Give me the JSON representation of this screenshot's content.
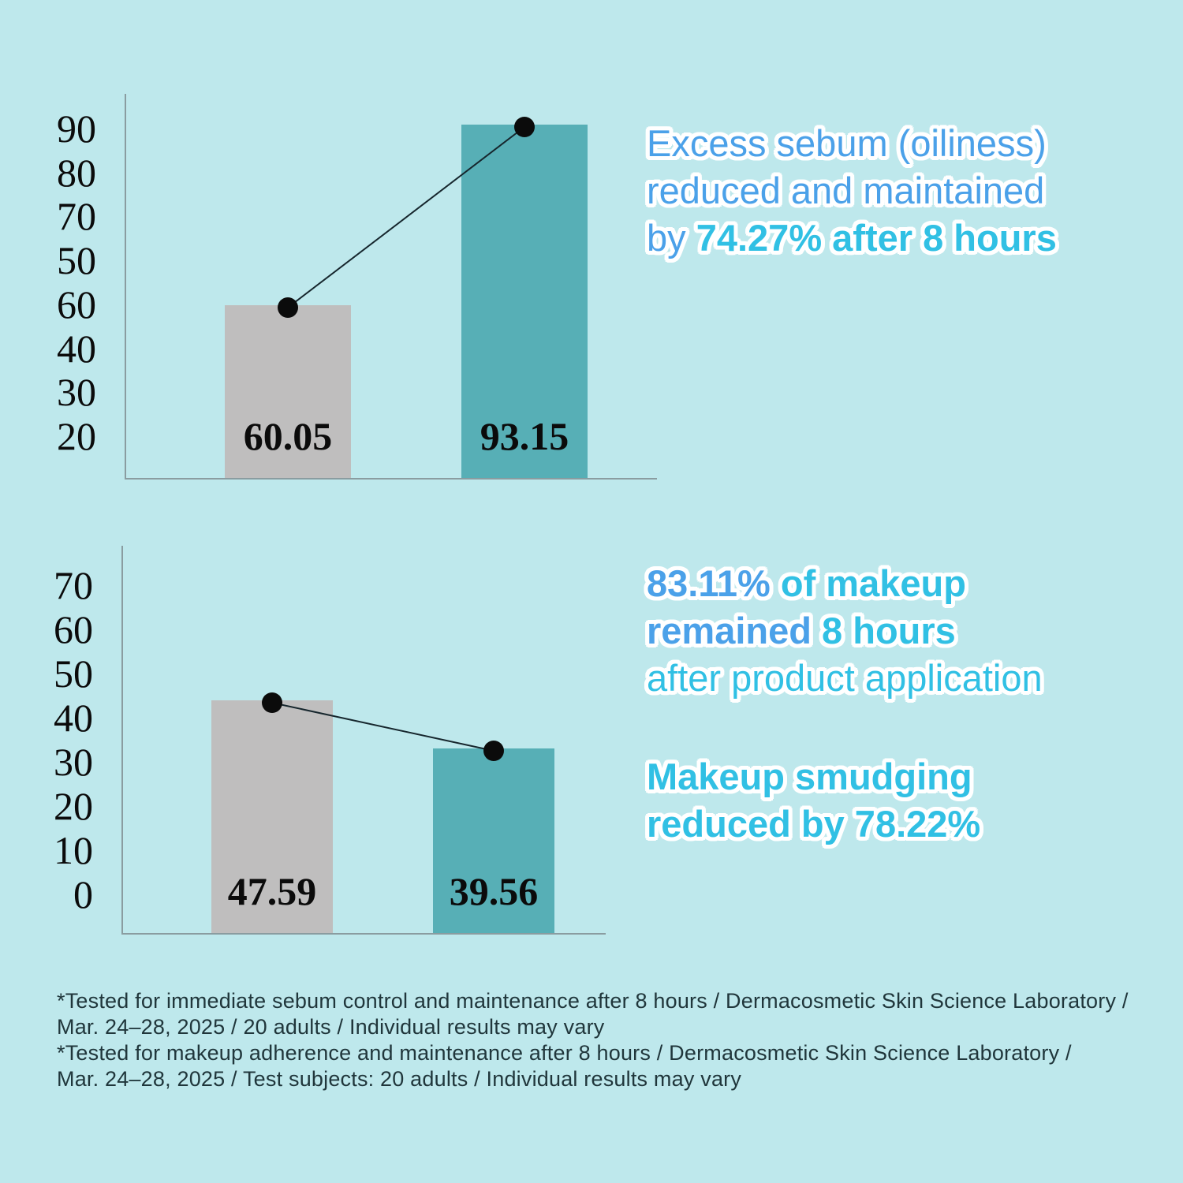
{
  "colors": {
    "bg": "#BEE8EC",
    "bar_gray": "#BFBEBE",
    "bar_teal": "#57AFB6",
    "axis": "#8A9CA0",
    "dot": "#0B0B0B",
    "connector": "#16262D",
    "blue": "#4BA1E9",
    "cyan": "#31C0E4",
    "ink": "#0B0B0B",
    "footnote_ink": "#20363B",
    "outline": "#FFFFFF"
  },
  "chart_data": [
    {
      "type": "bar",
      "title": "",
      "categories": [
        "",
        ""
      ],
      "values": [
        60.05,
        93.15
      ],
      "value_labels": [
        "60.05",
        "93.15"
      ],
      "bar_colors": [
        "bar_gray",
        "bar_teal"
      ],
      "bar_names": [
        "left-bar",
        "right-bar"
      ],
      "y_tick_labels": [
        "90",
        "80",
        "70",
        "50",
        "60",
        "40",
        "30",
        "20"
      ],
      "grid": false,
      "legend": "none",
      "annotation": "black dots on bar tops joined by a rising connector line"
    },
    {
      "type": "bar",
      "title": "",
      "categories": [
        "",
        ""
      ],
      "values": [
        47.59,
        39.56
      ],
      "value_labels": [
        "47.59",
        "39.56"
      ],
      "bar_colors": [
        "bar_gray",
        "bar_teal"
      ],
      "bar_names": [
        "left-bar",
        "right-bar"
      ],
      "y_tick_labels": [
        "70",
        "60",
        "50",
        "40",
        "30",
        "20",
        "10",
        "0"
      ],
      "grid": false,
      "legend": "none",
      "annotation": "black dots on bar tops joined by a falling connector line"
    }
  ],
  "texts": {
    "sebum_headline": {
      "line1": "Excess sebum (oiliness)",
      "line2": "reduced and maintained",
      "line3_prefix": "by ",
      "line3_emphasis": "74.27% after 8 hours"
    },
    "makeup_headline": {
      "line1_emphasis": "83.11% ",
      "line1_rest": "of makeup",
      "line2_emphasis": "remained ",
      "line2_rest": "8 hours",
      "line3": "after product application"
    },
    "smudge_headline": {
      "line1": "Makeup smudging",
      "line2": "reduced by 78.22%"
    }
  },
  "footnotes": [
    "*Tested for immediate sebum control and maintenance after 8 hours / Dermacosmetic Skin Science Laboratory /",
    "Mar. 24–28, 2025 / 20 adults / Individual results may vary",
    "*Tested for makeup adherence and maintenance after 8 hours / Dermacosmetic Skin Science Laboratory /",
    "Mar. 24–28, 2025 / Test subjects: 20 adults / Individual results may vary"
  ]
}
